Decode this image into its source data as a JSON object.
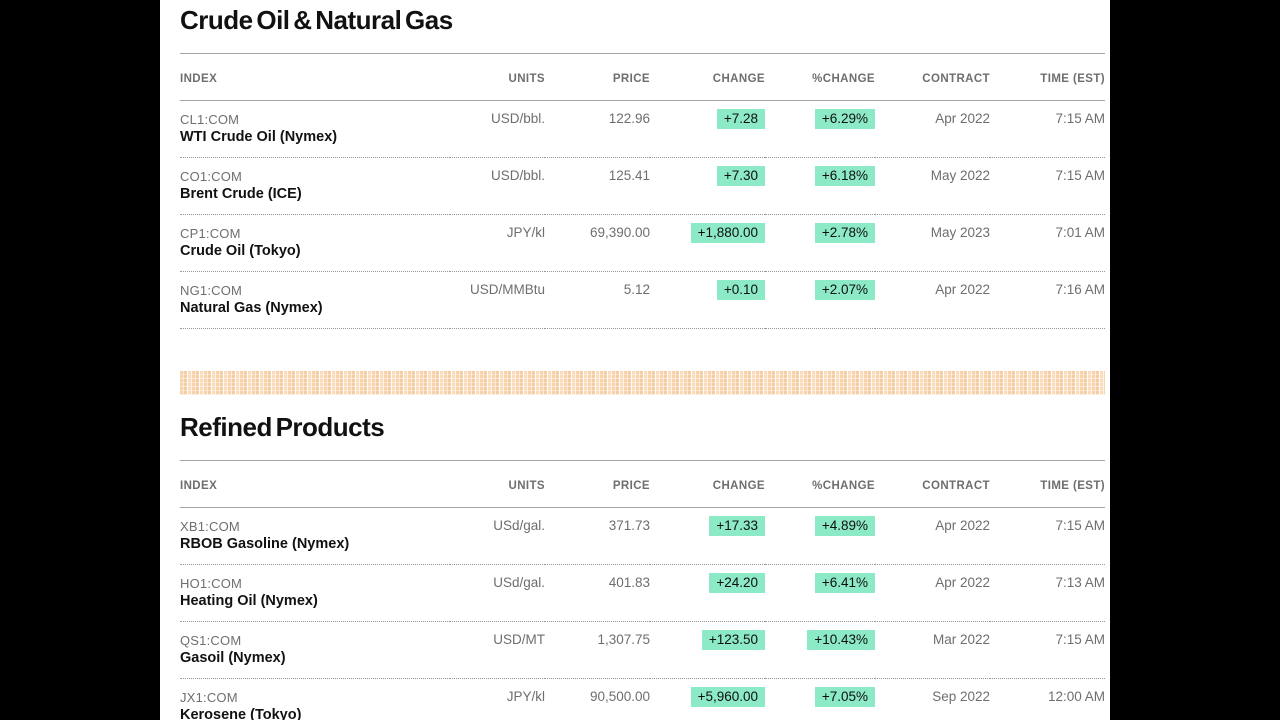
{
  "page": {
    "background": "#000000",
    "content_background": "#ffffff"
  },
  "colors": {
    "positive_badge_bg": "#8deac6",
    "muted_text": "#6e6e6e",
    "primary_text": "#111111",
    "divider_orange": "#f6cda2",
    "rule_gray": "#a3a3a3"
  },
  "sections": [
    {
      "title": "Crude Oil & Natural Gas",
      "columns": [
        "INDEX",
        "UNITS",
        "PRICE",
        "CHANGE",
        "%CHANGE",
        "CONTRACT",
        "TIME (EST)"
      ],
      "rows": [
        {
          "ticker": "CL1:COM",
          "name": "WTI Crude Oil (Nymex)",
          "units": "USD/bbl.",
          "price": "122.96",
          "change": "+7.28",
          "pct_change": "+6.29%",
          "contract": "Apr 2022",
          "time": "7:15 AM",
          "direction": "up"
        },
        {
          "ticker": "CO1:COM",
          "name": "Brent Crude (ICE)",
          "units": "USD/bbl.",
          "price": "125.41",
          "change": "+7.30",
          "pct_change": "+6.18%",
          "contract": "May 2022",
          "time": "7:15 AM",
          "direction": "up"
        },
        {
          "ticker": "CP1:COM",
          "name": "Crude Oil (Tokyo)",
          "units": "JPY/kl",
          "price": "69,390.00",
          "change": "+1,880.00",
          "pct_change": "+2.78%",
          "contract": "May 2023",
          "time": "7:01 AM",
          "direction": "up"
        },
        {
          "ticker": "NG1:COM",
          "name": "Natural Gas (Nymex)",
          "units": "USD/MMBtu",
          "price": "5.12",
          "change": "+0.10",
          "pct_change": "+2.07%",
          "contract": "Apr 2022",
          "time": "7:16 AM",
          "direction": "up"
        }
      ]
    },
    {
      "title": "Refined Products",
      "columns": [
        "INDEX",
        "UNITS",
        "PRICE",
        "CHANGE",
        "%CHANGE",
        "CONTRACT",
        "TIME (EST)"
      ],
      "rows": [
        {
          "ticker": "XB1:COM",
          "name": "RBOB Gasoline (Nymex)",
          "units": "USd/gal.",
          "price": "371.73",
          "change": "+17.33",
          "pct_change": "+4.89%",
          "contract": "Apr 2022",
          "time": "7:15 AM",
          "direction": "up"
        },
        {
          "ticker": "HO1:COM",
          "name": "Heating Oil (Nymex)",
          "units": "USd/gal.",
          "price": "401.83",
          "change": "+24.20",
          "pct_change": "+6.41%",
          "contract": "Apr 2022",
          "time": "7:13 AM",
          "direction": "up"
        },
        {
          "ticker": "QS1:COM",
          "name": "Gasoil (Nymex)",
          "units": "USD/MT",
          "price": "1,307.75",
          "change": "+123.50",
          "pct_change": "+10.43%",
          "contract": "Mar 2022",
          "time": "7:15 AM",
          "direction": "up"
        },
        {
          "ticker": "JX1:COM",
          "name": "Kerosene (Tokyo)",
          "units": "JPY/kl",
          "price": "90,500.00",
          "change": "+5,960.00",
          "pct_change": "+7.05%",
          "contract": "Sep 2022",
          "time": "12:00 AM",
          "direction": "up"
        }
      ]
    }
  ]
}
